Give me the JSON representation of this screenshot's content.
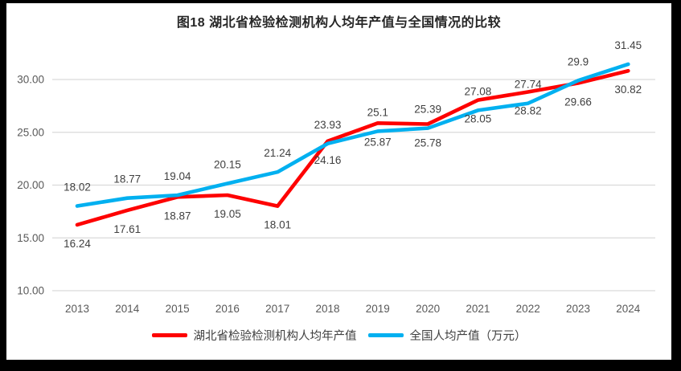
{
  "title": "图18  湖北省检验检测机构人均年产值与全国情况的比较",
  "colors": {
    "hubei_red": "#FE0000",
    "national_blue": "#00B0F0",
    "gridline": "#D9D9D9",
    "axis_text": "#595959",
    "label_text": "#404040",
    "title_text": "#262626",
    "frame": "#000000",
    "background": "#FFFFFF"
  },
  "chart_data": {
    "type": "line",
    "title": "图18  湖北省检验检测机构人均年产值与全国情况的比较",
    "categories": [
      "2013",
      "2014",
      "2015",
      "2016",
      "2017",
      "2018",
      "2019",
      "2020",
      "2021",
      "2022",
      "2023",
      "2024"
    ],
    "series": [
      {
        "id": "hubei",
        "name": "湖北省检验检测机构人均年产值",
        "color": "#FE0000",
        "label_position": "below",
        "values": [
          16.24,
          17.61,
          18.87,
          19.05,
          18.01,
          24.16,
          25.87,
          25.78,
          28.05,
          28.82,
          29.66,
          30.82
        ]
      },
      {
        "id": "national",
        "name": "全国人均产值（万元）",
        "color": "#00B0F0",
        "label_position": "above",
        "values": [
          18.02,
          18.77,
          19.04,
          20.15,
          21.24,
          23.93,
          25.1,
          25.39,
          27.08,
          27.74,
          29.9,
          31.45
        ]
      }
    ],
    "y_ticks": [
      "10.00",
      "15.00",
      "20.00",
      "25.00",
      "30.00"
    ],
    "y_tick_values": [
      10,
      15,
      20,
      25,
      30
    ],
    "ylim": [
      10,
      32.6
    ],
    "grid": true,
    "legend_position": "bottom",
    "xlabel": "",
    "ylabel": ""
  }
}
